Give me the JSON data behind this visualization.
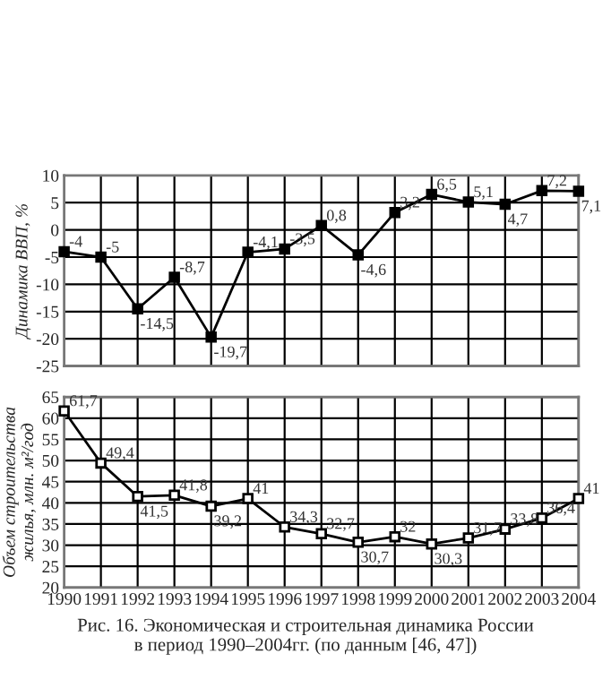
{
  "chart_data": [
    {
      "type": "line",
      "ylabel": "Динамика ВВП, %",
      "x": [
        1990,
        1991,
        1992,
        1993,
        1994,
        1995,
        1996,
        1997,
        1998,
        1999,
        2000,
        2001,
        2002,
        2003,
        2004
      ],
      "xlim": [
        1990,
        2004
      ],
      "xticks": [
        1990,
        1991,
        1992,
        1993,
        1994,
        1995,
        1996,
        1997,
        1998,
        1999,
        2000,
        2001,
        2002,
        2003,
        2004
      ],
      "ylim": [
        -25,
        10
      ],
      "yticks": [
        -25,
        -20,
        -15,
        -10,
        -5,
        0,
        5,
        10
      ],
      "tick_labels": "y",
      "grid": true,
      "marker": "square",
      "line_style": "solid",
      "series": [
        {
          "color": "#000000",
          "values": [
            -4,
            -5,
            -14.5,
            -8.7,
            -19.7,
            -4.1,
            -3.5,
            0.8,
            -4.6,
            3.2,
            6.5,
            5.1,
            4.7,
            7.2,
            7.1
          ],
          "value_labels": [
            "-4",
            "-5",
            "-14,5",
            "-8,7",
            "-19,7",
            "-4,1",
            "-3,5",
            "0,8",
            "-4,6",
            "3,2",
            "6,5",
            "5,1",
            "4,7",
            "7,2",
            "7,1"
          ]
        }
      ]
    },
    {
      "type": "line",
      "ylabel": "Объем строительства\nжилья, млн. м²/год",
      "x": [
        1990,
        1991,
        1992,
        1993,
        1994,
        1995,
        1996,
        1997,
        1998,
        1999,
        2000,
        2001,
        2002,
        2003,
        2004
      ],
      "xlim": [
        1990,
        2004
      ],
      "xticks": [
        1990,
        1991,
        1992,
        1993,
        1994,
        1995,
        1996,
        1997,
        1998,
        1999,
        2000,
        2001,
        2002,
        2003,
        2004
      ],
      "ylim": [
        20,
        65
      ],
      "yticks": [
        20,
        25,
        30,
        35,
        40,
        45,
        50,
        55,
        60,
        65
      ],
      "grid": true,
      "marker": "square",
      "line_style": "solid",
      "series": [
        {
          "color": "#000000",
          "values": [
            61.7,
            49.4,
            41.5,
            41.8,
            39.2,
            41,
            34.3,
            32.7,
            30.7,
            32,
            30.3,
            31.7,
            33.8,
            36.4,
            41
          ],
          "value_labels": [
            "61,7",
            "49,4",
            "41,5",
            "41,8",
            "39,2",
            "41",
            "34,3",
            "32,7",
            "30,7",
            "32",
            "30,3",
            "31,7",
            "33,8",
            "36,4",
            "41"
          ]
        }
      ],
      "annotations": [
        "Рис. 16. Экономическая и строительная динамика России\nв период 1990–2004гг. (по данным [46, 47])"
      ]
    }
  ]
}
